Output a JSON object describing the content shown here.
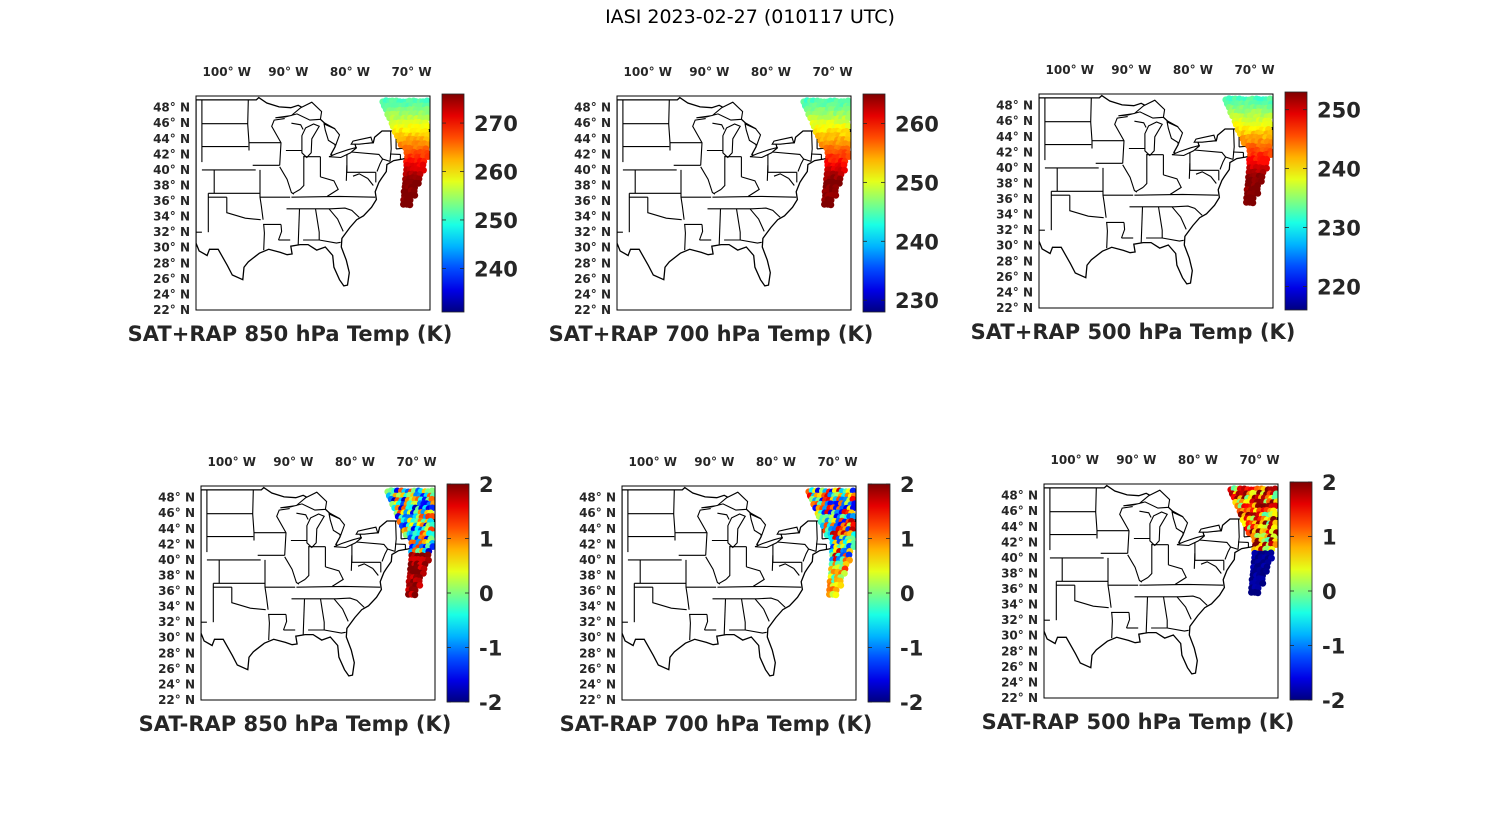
{
  "figure": {
    "title": "IASI 2023-02-27 (010117 UTC)"
  },
  "map": {
    "lon_labels": [
      "100° W",
      "90° W",
      "80° W",
      "70° W"
    ],
    "lon_values": [
      -100,
      -90,
      -80,
      -70
    ],
    "lat_labels": [
      "48° N",
      "46° N",
      "44° N",
      "42° N",
      "40° N",
      "38° N",
      "36° N",
      "34° N",
      "32° N",
      "30° N",
      "28° N",
      "26° N",
      "24° N",
      "22° N"
    ],
    "lat_values": [
      48,
      46,
      44,
      42,
      40,
      38,
      36,
      34,
      32,
      30,
      28,
      26,
      24,
      22
    ],
    "lon_range": [
      -105,
      -67
    ],
    "lat_range": [
      22,
      49.5
    ]
  },
  "panels": [
    {
      "id": "sat-rap-sum-850",
      "caption": "SAT+RAP 850 hPa Temp (K)",
      "colorbar": {
        "range": [
          231,
          276
        ],
        "ticks": [
          240,
          250,
          260,
          270
        ],
        "tick_labels": [
          "240",
          "250",
          "260",
          "270"
        ]
      },
      "field": "sum",
      "level": 850
    },
    {
      "id": "sat-rap-sum-700",
      "caption": "SAT+RAP 700 hPa Temp (K)",
      "colorbar": {
        "range": [
          228,
          265
        ],
        "ticks": [
          230,
          240,
          250,
          260
        ],
        "tick_labels": [
          "230",
          "240",
          "250",
          "260"
        ]
      },
      "field": "sum",
      "level": 700
    },
    {
      "id": "sat-rap-sum-500",
      "caption": "SAT+RAP 500 hPa Temp (K)",
      "colorbar": {
        "range": [
          216,
          253
        ],
        "ticks": [
          220,
          230,
          240,
          250
        ],
        "tick_labels": [
          "220",
          "230",
          "240",
          "250"
        ]
      },
      "field": "sum",
      "level": 500
    },
    {
      "id": "sat-rap-diff-850",
      "caption": "SAT-RAP 850 hPa Temp (K)",
      "colorbar": {
        "range": [
          -2,
          2
        ],
        "ticks": [
          -2,
          -1,
          0,
          1,
          2
        ],
        "tick_labels": [
          "-2",
          "-1",
          "0",
          "1",
          "2"
        ]
      },
      "field": "diff",
      "level": 850
    },
    {
      "id": "sat-rap-diff-700",
      "caption": "SAT-RAP 700 hPa Temp (K)",
      "colorbar": {
        "range": [
          -2,
          2
        ],
        "ticks": [
          -2,
          -1,
          0,
          1,
          2
        ],
        "tick_labels": [
          "-2",
          "-1",
          "0",
          "1",
          "2"
        ]
      },
      "field": "diff",
      "level": 700
    },
    {
      "id": "sat-rap-diff-500",
      "caption": "SAT-RAP 500 hPa Temp (K)",
      "colorbar": {
        "range": [
          -2,
          2
        ],
        "ticks": [
          -2,
          -1,
          0,
          1,
          2
        ],
        "tick_labels": [
          "-2",
          "-1",
          "0",
          "1",
          "2"
        ]
      },
      "field": "diff",
      "level": 500
    }
  ],
  "colormap": "jet"
}
